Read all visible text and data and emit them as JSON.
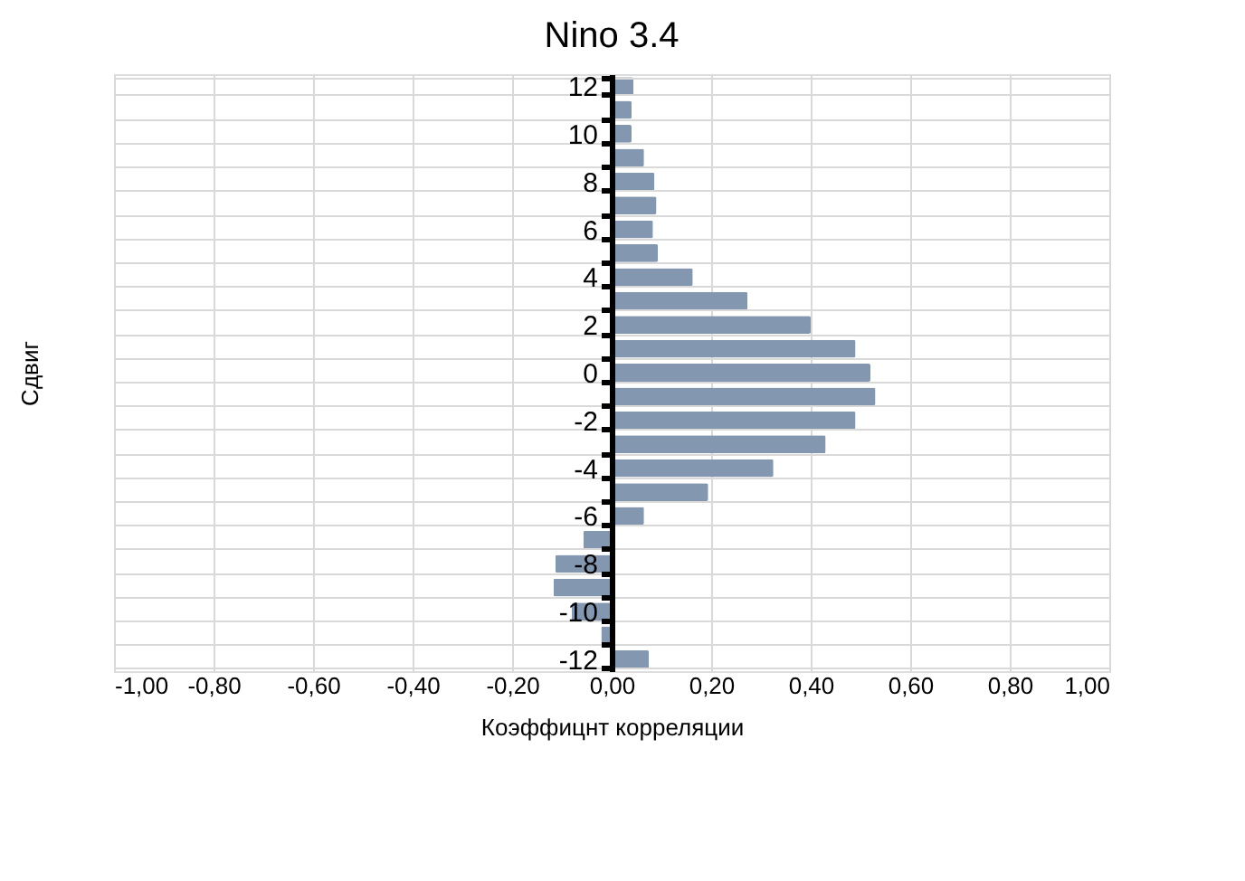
{
  "chart_data": {
    "type": "bar",
    "orientation": "horizontal",
    "title": "Nino 3.4",
    "xlabel": "Коэффицнт корреляции",
    "ylabel": "Сдвиг",
    "categories": [
      "12",
      null,
      "10",
      null,
      "8",
      null,
      "6",
      null,
      "4",
      null,
      "2",
      null,
      "0",
      null,
      "-2",
      null,
      "-4",
      null,
      "-6",
      null,
      "-8",
      null,
      "-10",
      null,
      "-12"
    ],
    "values": [
      0.044,
      0.04,
      0.04,
      0.065,
      0.086,
      0.09,
      0.083,
      0.093,
      0.163,
      0.273,
      0.4,
      0.49,
      0.52,
      0.53,
      0.49,
      0.43,
      0.325,
      0.194,
      0.065,
      -0.057,
      -0.113,
      -0.117,
      -0.08,
      -0.021,
      0.075
    ],
    "color": "#8497b0",
    "xlim": [
      -1,
      1
    ],
    "xticks": [
      {
        "value": -1,
        "label": "-1,00"
      },
      {
        "value": -0.8,
        "label": "-0,80"
      },
      {
        "value": -0.6,
        "label": "-0,60"
      },
      {
        "value": -0.4,
        "label": "-0,40"
      },
      {
        "value": -0.2,
        "label": "-0,20"
      },
      {
        "value": 0,
        "label": "0,00"
      },
      {
        "value": 0.2,
        "label": "0,20"
      },
      {
        "value": 0.4,
        "label": "0,40"
      },
      {
        "value": 0.6,
        "label": "0,60"
      },
      {
        "value": 0.8,
        "label": "0,80"
      },
      {
        "value": 1,
        "label": "1,00"
      }
    ],
    "grid": true
  }
}
